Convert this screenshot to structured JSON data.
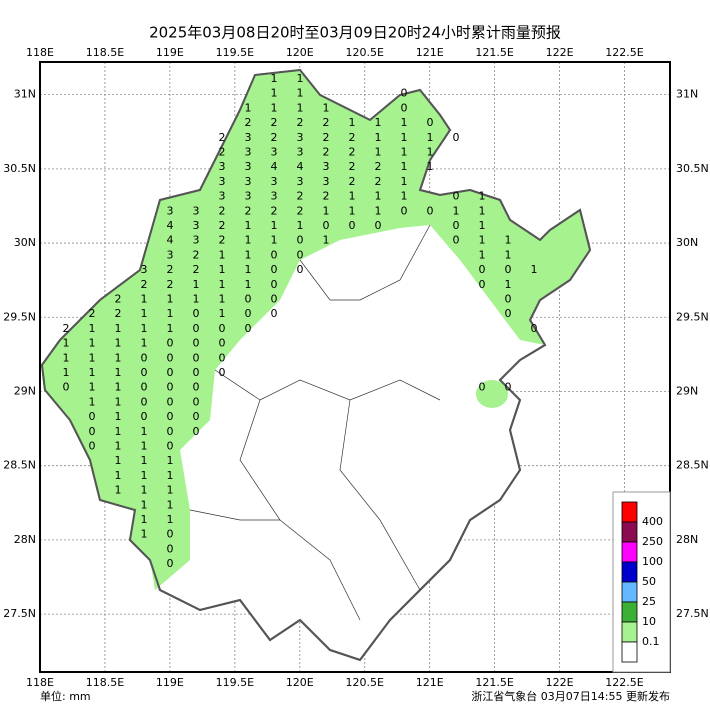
{
  "map_data": {
    "title": "2025年03月08日20时至03月09日20时24小时累计雨量预报",
    "unit": "单位: mm",
    "footer": "浙江省气象台 03月07日14:55 更新发布",
    "xlim": [
      118,
      122.85
    ],
    "ylim": [
      27.11,
      31.22
    ],
    "xticks": [
      {
        "value": 118,
        "label": "118E"
      },
      {
        "value": 118.5,
        "label": "118.5E"
      },
      {
        "value": 119,
        "label": "119E"
      },
      {
        "value": 119.5,
        "label": "119.5E"
      },
      {
        "value": 120,
        "label": "120E"
      },
      {
        "value": 120.5,
        "label": "120.5E"
      },
      {
        "value": 121,
        "label": "121E"
      },
      {
        "value": 121.5,
        "label": "121.5E"
      },
      {
        "value": 122,
        "label": "122E"
      },
      {
        "value": 122.5,
        "label": "122.5E"
      }
    ],
    "yticks": [
      {
        "value": 31,
        "label": "31N"
      },
      {
        "value": 30.5,
        "label": "30.5N"
      },
      {
        "value": 30,
        "label": "30N"
      },
      {
        "value": 29.5,
        "label": "29.5N"
      },
      {
        "value": 29,
        "label": "29N"
      },
      {
        "value": 28.5,
        "label": "28.5N"
      },
      {
        "value": 28,
        "label": "28N"
      },
      {
        "value": 27.5,
        "label": "27.5N"
      }
    ],
    "legend": {
      "labels": [
        "400",
        "250",
        "100",
        "50",
        "25",
        "10",
        "0.1"
      ],
      "colors": [
        "#ff0000",
        "#8b0a50",
        "#ff00ff",
        "#0000cd",
        "#63b8ff",
        "#3cb034",
        "#a6f28f",
        "#ffffff"
      ]
    },
    "grid_values": [
      [
        null,
        null,
        null,
        null,
        null,
        null,
        null,
        null,
        1,
        1,
        null,
        null,
        null,
        null,
        null,
        null,
        null,
        null,
        null
      ],
      [
        null,
        null,
        null,
        null,
        null,
        null,
        null,
        null,
        1,
        1,
        null,
        null,
        null,
        0,
        null,
        null,
        null,
        null,
        null
      ],
      [
        null,
        null,
        null,
        null,
        null,
        null,
        null,
        1,
        1,
        1,
        1,
        null,
        null,
        0,
        null,
        null,
        null,
        null,
        null
      ],
      [
        null,
        null,
        null,
        null,
        null,
        null,
        null,
        2,
        2,
        2,
        2,
        1,
        1,
        1,
        0,
        null,
        null,
        null,
        null
      ],
      [
        null,
        null,
        null,
        null,
        null,
        null,
        2,
        3,
        2,
        3,
        2,
        2,
        1,
        1,
        1,
        0,
        null,
        null,
        null
      ],
      [
        null,
        null,
        null,
        null,
        null,
        null,
        2,
        3,
        3,
        3,
        2,
        2,
        1,
        1,
        1,
        null,
        null,
        null,
        null
      ],
      [
        null,
        null,
        null,
        null,
        null,
        null,
        3,
        3,
        4,
        4,
        3,
        2,
        2,
        1,
        1,
        null,
        null,
        null,
        null
      ],
      [
        null,
        null,
        null,
        null,
        null,
        null,
        3,
        3,
        3,
        3,
        3,
        2,
        2,
        1,
        null,
        null,
        null,
        null,
        null
      ],
      [
        null,
        null,
        null,
        null,
        null,
        null,
        3,
        3,
        3,
        2,
        2,
        1,
        1,
        1,
        null,
        0,
        1,
        null,
        null
      ],
      [
        null,
        null,
        null,
        null,
        3,
        3,
        2,
        2,
        2,
        2,
        1,
        1,
        1,
        0,
        0,
        1,
        1,
        null,
        null
      ],
      [
        null,
        null,
        null,
        null,
        4,
        3,
        2,
        1,
        1,
        1,
        0,
        0,
        0,
        null,
        null,
        0,
        1,
        null,
        null
      ],
      [
        null,
        null,
        null,
        null,
        4,
        3,
        2,
        1,
        1,
        0,
        1,
        null,
        null,
        null,
        null,
        0,
        1,
        1,
        null
      ],
      [
        null,
        null,
        null,
        null,
        3,
        2,
        1,
        1,
        0,
        0,
        null,
        null,
        null,
        null,
        null,
        null,
        1,
        1,
        null
      ],
      [
        null,
        null,
        null,
        3,
        2,
        2,
        1,
        1,
        0,
        0,
        null,
        null,
        null,
        null,
        null,
        null,
        0,
        0,
        1
      ],
      [
        null,
        null,
        null,
        2,
        2,
        1,
        1,
        1,
        0,
        null,
        null,
        null,
        null,
        null,
        null,
        null,
        0,
        1,
        null
      ],
      [
        null,
        null,
        2,
        1,
        1,
        1,
        1,
        0,
        0,
        null,
        null,
        null,
        null,
        null,
        null,
        null,
        null,
        0,
        null
      ],
      [
        null,
        2,
        2,
        1,
        1,
        0,
        1,
        0,
        0,
        null,
        null,
        null,
        null,
        null,
        null,
        null,
        null,
        0,
        null
      ],
      [
        2,
        1,
        1,
        1,
        1,
        0,
        0,
        0,
        null,
        null,
        null,
        null,
        null,
        null,
        null,
        null,
        null,
        null,
        0
      ],
      [
        1,
        1,
        1,
        1,
        0,
        0,
        0,
        null,
        null,
        null,
        null,
        null,
        null,
        null,
        null,
        null,
        null,
        null,
        null
      ],
      [
        1,
        1,
        1,
        0,
        0,
        0,
        0,
        null,
        null,
        null,
        null,
        null,
        null,
        null,
        null,
        null,
        null,
        null,
        null
      ],
      [
        1,
        1,
        1,
        0,
        0,
        0,
        0,
        null,
        null,
        null,
        null,
        null,
        null,
        null,
        null,
        null,
        null,
        null,
        null
      ],
      [
        0,
        1,
        1,
        0,
        0,
        0,
        null,
        null,
        null,
        null,
        null,
        null,
        null,
        null,
        null,
        null,
        0,
        0,
        null
      ],
      [
        null,
        1,
        1,
        0,
        0,
        0,
        null,
        null,
        null,
        null,
        null,
        null,
        null,
        null,
        null,
        null,
        null,
        null,
        null
      ],
      [
        null,
        0,
        1,
        0,
        0,
        0,
        null,
        null,
        null,
        null,
        null,
        null,
        null,
        null,
        null,
        null,
        null,
        null,
        null
      ],
      [
        null,
        0,
        1,
        1,
        0,
        0,
        null,
        null,
        null,
        null,
        null,
        null,
        null,
        null,
        null,
        null,
        null,
        null,
        null
      ],
      [
        null,
        0,
        1,
        1,
        0,
        null,
        null,
        null,
        null,
        null,
        null,
        null,
        null,
        null,
        null,
        null,
        null,
        null,
        null
      ],
      [
        null,
        null,
        1,
        1,
        1,
        null,
        null,
        null,
        null,
        null,
        null,
        null,
        null,
        null,
        null,
        null,
        null,
        null,
        null
      ],
      [
        null,
        null,
        1,
        1,
        1,
        null,
        null,
        null,
        null,
        null,
        null,
        null,
        null,
        null,
        null,
        null,
        null,
        null,
        null
      ],
      [
        null,
        null,
        1,
        1,
        1,
        null,
        null,
        null,
        null,
        null,
        null,
        null,
        null,
        null,
        null,
        null,
        null,
        null,
        null
      ],
      [
        null,
        null,
        null,
        1,
        1,
        null,
        null,
        null,
        null,
        null,
        null,
        null,
        null,
        null,
        null,
        null,
        null,
        null,
        null
      ],
      [
        null,
        null,
        null,
        1,
        1,
        null,
        null,
        null,
        null,
        null,
        null,
        null,
        null,
        null,
        null,
        null,
        null,
        null,
        null
      ],
      [
        null,
        null,
        null,
        1,
        0,
        null,
        null,
        null,
        null,
        null,
        null,
        null,
        null,
        null,
        null,
        null,
        null,
        null,
        null
      ],
      [
        null,
        null,
        null,
        null,
        0,
        null,
        null,
        null,
        null,
        null,
        null,
        null,
        null,
        null,
        null,
        null,
        null,
        null,
        null
      ],
      [
        null,
        null,
        null,
        null,
        0,
        null,
        null,
        null,
        null,
        null,
        null,
        null,
        null,
        null,
        null,
        null,
        null,
        null,
        null
      ]
    ]
  }
}
